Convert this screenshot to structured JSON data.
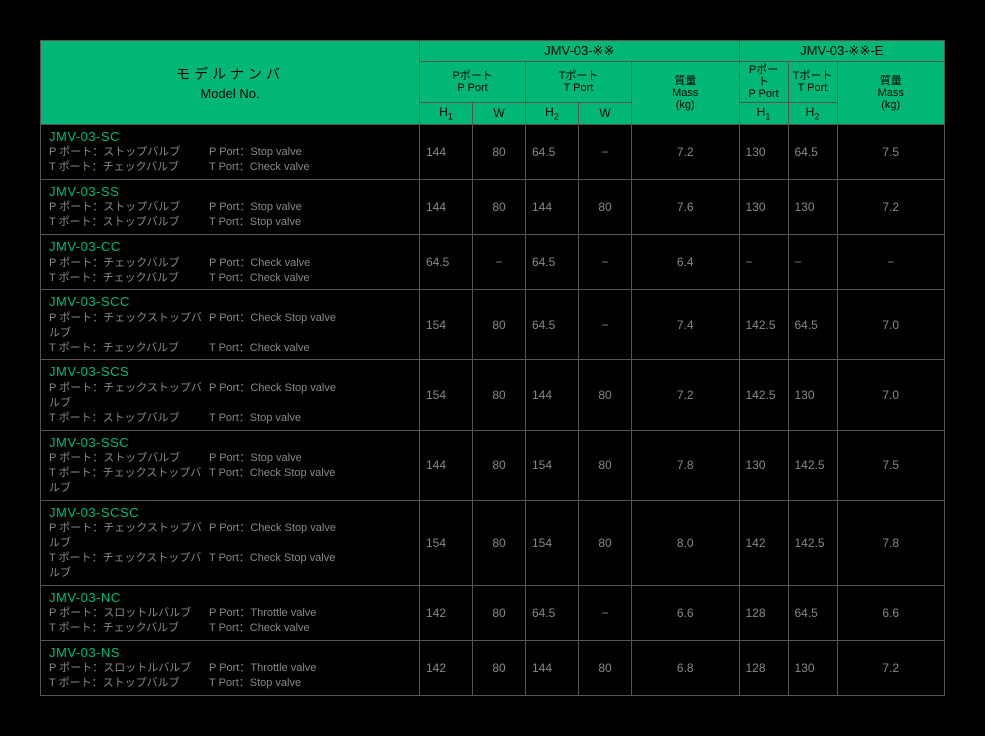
{
  "header": {
    "title_jp": "モデルナンバ",
    "title_en": "Model No.",
    "group1": "JMV-03-※※",
    "group2": "JMV-03-※※-E",
    "pport_jp": "Pポート",
    "pport_en": "P Port",
    "tport_jp": "Tポート",
    "tport_en": "T Port",
    "mass_jp": "質量",
    "mass_en": "Mass",
    "kg": "(kg)",
    "H1": "H",
    "H1s": "1",
    "H2": "H",
    "H2s": "2",
    "W": "W"
  },
  "rows": [
    {
      "model": "JMV-03-SC",
      "p_jp": "P ポート：ストップバルブ",
      "p_en": "P Port：Stop valve",
      "t_jp": "T ポート：チェックバルブ",
      "t_en": "T Port：Check valve",
      "v": [
        "144",
        "80",
        "64.5",
        "−",
        "7.2",
        "130",
        "64.5",
        "7.5"
      ]
    },
    {
      "model": "JMV-03-SS",
      "p_jp": "P ポート：ストップバルブ",
      "p_en": "P Port：Stop valve",
      "t_jp": "T ポート：ストップバルブ",
      "t_en": "T Port：Stop valve",
      "v": [
        "144",
        "80",
        "144",
        "80",
        "7.6",
        "130",
        "130",
        "7.2"
      ]
    },
    {
      "model": "JMV-03-CC",
      "p_jp": "P ポート：チェックバルブ",
      "p_en": "P Port：Check valve",
      "t_jp": "T ポート：チェックバルブ",
      "t_en": "T Port：Check valve",
      "v": [
        "64.5",
        "−",
        "64.5",
        "−",
        "6.4",
        "−",
        "−",
        "−"
      ]
    },
    {
      "model": "JMV-03-SCC",
      "p_jp": "P ポート：チェックストップバルブ",
      "p_en": "P Port：Check Stop valve",
      "t_jp": "T ポート：チェックバルブ",
      "t_en": "T Port：Check valve",
      "v": [
        "154",
        "80",
        "64.5",
        "−",
        "7.4",
        "142.5",
        "64.5",
        "7.0"
      ]
    },
    {
      "model": "JMV-03-SCS",
      "p_jp": "P ポート：チェックストップバルブ",
      "p_en": "P Port：Check Stop valve",
      "t_jp": "T ポート：ストップバルブ",
      "t_en": "T Port：Stop valve",
      "v": [
        "154",
        "80",
        "144",
        "80",
        "7.2",
        "142.5",
        "130",
        "7.0"
      ]
    },
    {
      "model": "JMV-03-SSC",
      "p_jp": "P ポート：ストップバルブ",
      "p_en": "P Port：Stop valve",
      "t_jp": "T ポート：チェックストップバルブ",
      "t_en": "T Port：Check Stop valve",
      "v": [
        "144",
        "80",
        "154",
        "80",
        "7.8",
        "130",
        "142.5",
        "7.5"
      ]
    },
    {
      "model": "JMV-03-SCSC",
      "p_jp": "P ポート：チェックストップバルブ",
      "p_en": "P Port：Check Stop valve",
      "t_jp": "T ポート：チェックストップバルブ",
      "t_en": "T Port：Check Stop valve",
      "v": [
        "154",
        "80",
        "154",
        "80",
        "8.0",
        "142",
        "142.5",
        "7.8"
      ]
    },
    {
      "model": "JMV-03-NC",
      "p_jp": "P ポート：スロットルバルブ",
      "p_en": "P Port：Throttle valve",
      "t_jp": "T ポート：チェックバルブ",
      "t_en": "T Port：Check valve",
      "v": [
        "142",
        "80",
        "64.5",
        "−",
        "6.6",
        "128",
        "64.5",
        "6.6"
      ]
    },
    {
      "model": "JMV-03-NS",
      "p_jp": "P ポート：スロットルバルブ",
      "p_en": "P Port：Throttle valve",
      "t_jp": "T ポート：ストップバルブ",
      "t_en": "T Port：Stop valve",
      "v": [
        "142",
        "80",
        "144",
        "80",
        "6.8",
        "128",
        "130",
        "7.2"
      ]
    }
  ]
}
